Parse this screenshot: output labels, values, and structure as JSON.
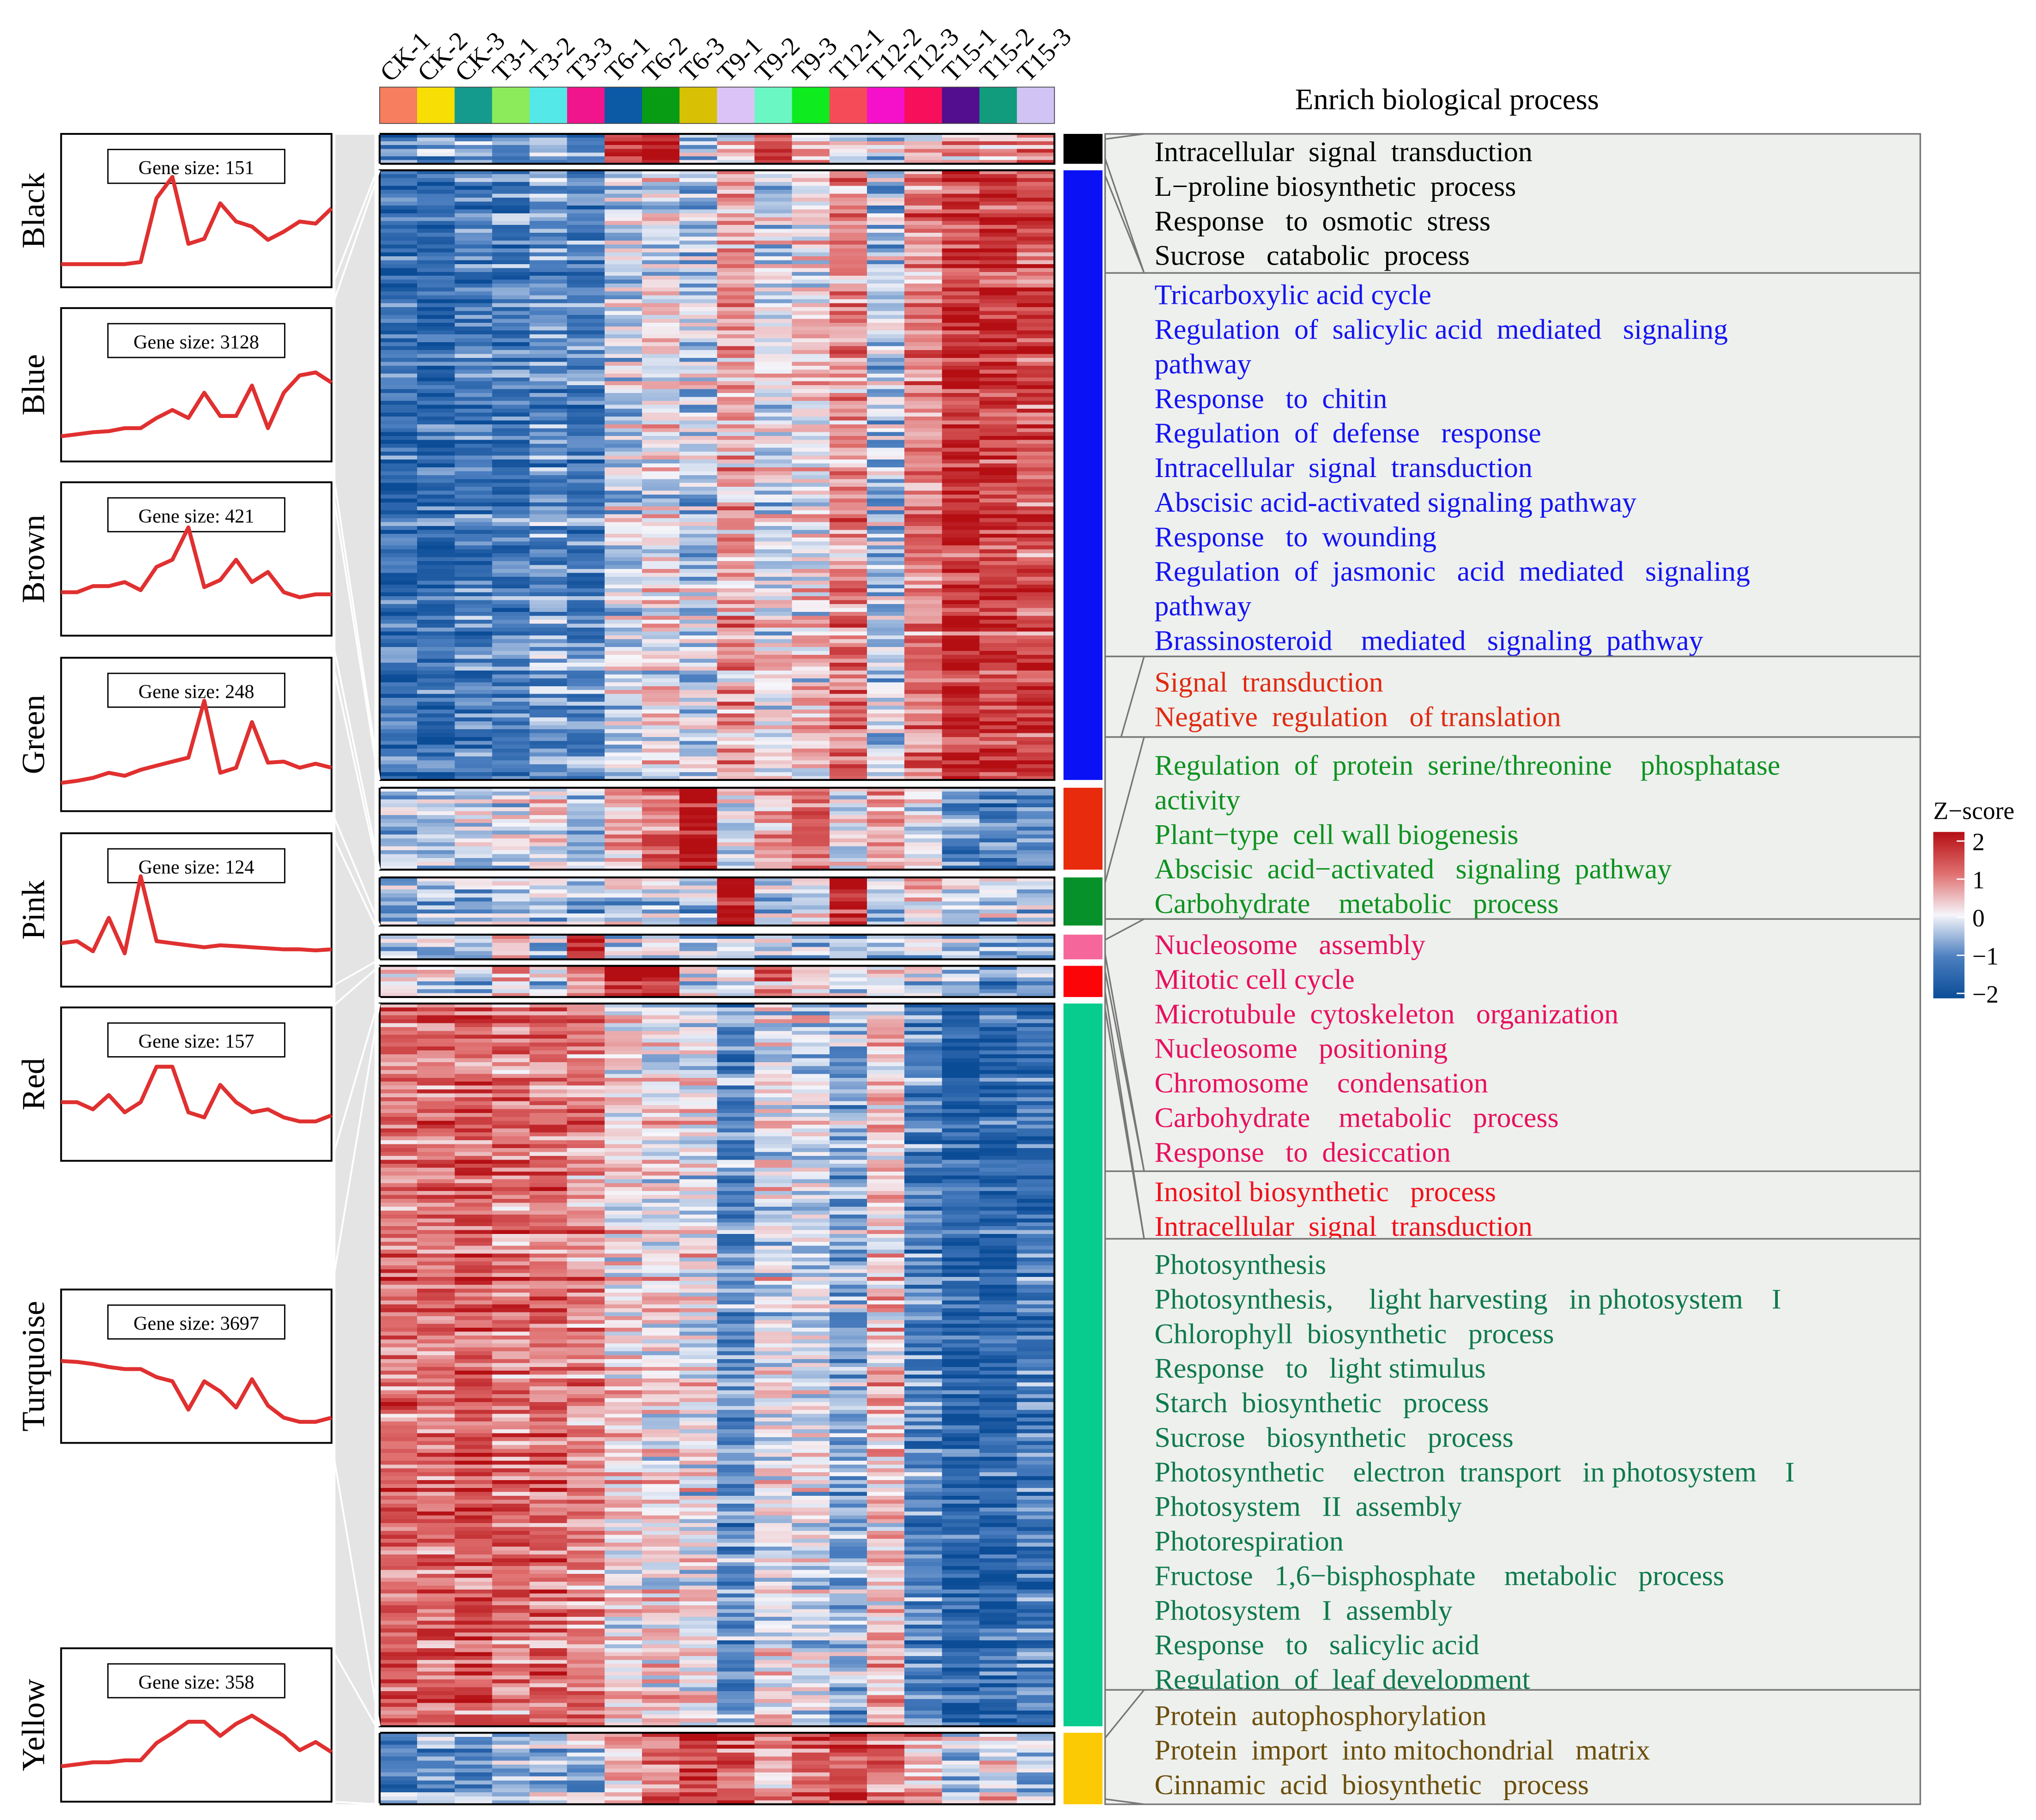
{
  "chart_data": {
    "type": "heatmap",
    "title": "Enrich biological process",
    "samples": [
      "CK-1",
      "CK-2",
      "CK-3",
      "T3-1",
      "T3-2",
      "T3-3",
      "T6-1",
      "T6-2",
      "T6-3",
      "T9-1",
      "T9-2",
      "T9-3",
      "T12-1",
      "T12-2",
      "T12-3",
      "T15-1",
      "T15-2",
      "T15-3"
    ],
    "sample_colors": [
      "#F77E5E",
      "#F7DE05",
      "#159A8E",
      "#8CEB5A",
      "#54E8E8",
      "#F0158C",
      "#0C5AA6",
      "#079C13",
      "#D8C105",
      "#DCC3F7",
      "#6BF7C4",
      "#0EEB1E",
      "#F54B59",
      "#F511C9",
      "#F70F5C",
      "#520E8E",
      "#119C7E",
      "#D2C3F5"
    ],
    "colorbar": {
      "title": "Z−score",
      "ticks": [
        "2",
        "1",
        "0",
        "−1",
        "−2"
      ],
      "range": [
        -2,
        2
      ],
      "colors": [
        "#0B4C97",
        "#4C7FC0",
        "#F5F5FA",
        "#E06F6F",
        "#B40E13"
      ]
    },
    "modules": [
      {
        "name": "Black",
        "color": "#000000",
        "text_color": "#000000",
        "gene_size_label": "Gene size: 151",
        "trend": [
          0.1,
          0.1,
          0.1,
          0.1,
          0.1,
          0.12,
          0.75,
          0.96,
          0.3,
          0.35,
          0.7,
          0.52,
          0.47,
          0.34,
          0.42,
          0.52,
          0.5,
          0.65
        ],
        "heatmap_rows": [
          [
            -0.9,
            -0.8,
            -0.9,
            -0.8,
            -0.7,
            -0.9,
            1.6,
            2.0,
            -0.3,
            0.2,
            1.6,
            0.6,
            0.1,
            -0.2,
            0.2,
            0.7,
            0.6,
            0.9
          ]
        ],
        "terms": [
          "Intracellular  signal  transduction",
          "L−proline biosynthetic  process",
          "Response   to  osmotic  stress",
          "Sucrose   catabolic  process"
        ]
      },
      {
        "name": "Blue",
        "color": "#0A12F5",
        "text_color": "#1414F2",
        "gene_size_label": "Gene size: 3128",
        "trend": [
          0.12,
          0.14,
          0.16,
          0.17,
          0.2,
          0.2,
          0.3,
          0.38,
          0.3,
          0.55,
          0.32,
          0.32,
          0.62,
          0.2,
          0.55,
          0.72,
          0.75,
          0.65
        ],
        "heatmap_rows": [
          [
            -1.4,
            -1.5,
            -1.2,
            -1.2,
            -0.9,
            -1.1,
            -0.3,
            0.0,
            -0.3,
            0.6,
            -0.1,
            0.1,
            0.8,
            -0.4,
            0.9,
            1.6,
            1.5,
            1.3
          ]
        ],
        "terms": [
          "Tricarboxylic acid cycle",
          "Regulation  of  salicylic acid  mediated   signaling",
          "pathway",
          "Response   to  chitin",
          "Regulation  of  defense   response",
          "Intracellular  signal  transduction",
          "Abscisic acid-activated signaling pathway",
          "Response   to  wounding",
          "Regulation  of  jasmonic   acid  mediated   signaling",
          "pathway",
          "Brassinosteroid    mediated   signaling  pathway"
        ]
      },
      {
        "name": "Brown",
        "color": "#E82A0D",
        "text_color": "#E02A10",
        "gene_size_label": "Gene size: 421",
        "trend": [
          0.3,
          0.3,
          0.36,
          0.36,
          0.4,
          0.32,
          0.55,
          0.62,
          0.94,
          0.35,
          0.42,
          0.62,
          0.4,
          0.5,
          0.3,
          0.25,
          0.28,
          0.28
        ],
        "heatmap_rows": [
          [
            -0.4,
            -0.5,
            -0.3,
            -0.2,
            0.1,
            -0.6,
            0.3,
            0.9,
            1.9,
            -0.2,
            0.4,
            1.1,
            0.0,
            0.6,
            -0.2,
            -1.0,
            -1.1,
            -1.0
          ]
        ],
        "terms": [
          "Signal  transduction",
          "Negative  regulation   of translation"
        ]
      },
      {
        "name": "Green",
        "color": "#07912A",
        "text_color": "#0E9220",
        "gene_size_label": "Gene size: 248",
        "trend": [
          0.15,
          0.17,
          0.2,
          0.25,
          0.22,
          0.28,
          0.32,
          0.36,
          0.4,
          0.96,
          0.25,
          0.3,
          0.75,
          0.35,
          0.36,
          0.3,
          0.34,
          0.3
        ],
        "heatmap_rows": [
          [
            -0.7,
            -0.6,
            -0.7,
            -0.6,
            -0.4,
            -0.6,
            -0.4,
            -0.3,
            -0.5,
            2.0,
            -0.5,
            -0.2,
            1.8,
            -0.3,
            0.3,
            -0.4,
            0.0,
            -0.3
          ]
        ],
        "terms": [
          "Regulation  of  protein  serine/threonine    phosphatase",
          "activity",
          "Plant−type  cell wall biogenesis",
          "Abscisic  acid−activated   signaling  pathway",
          "Carbohydrate    metabolic   process"
        ]
      },
      {
        "name": "Pink",
        "color": "#F5679A",
        "text_color": "#E8105E",
        "gene_size_label": "Gene size: 124",
        "trend": [
          0.3,
          0.32,
          0.22,
          0.55,
          0.2,
          0.96,
          0.32,
          0.3,
          0.28,
          0.26,
          0.28,
          0.27,
          0.26,
          0.25,
          0.24,
          0.24,
          0.23,
          0.24
        ],
        "heatmap_rows": [
          [
            -0.3,
            -0.2,
            -0.3,
            0.8,
            -0.4,
            2.2,
            -0.2,
            0.1,
            -0.2,
            -0.4,
            -0.3,
            -0.3,
            -0.3,
            -0.4,
            -0.3,
            -0.5,
            -0.4,
            -0.5
          ]
        ],
        "terms": [
          "Nucleosome   assembly",
          "Mitotic cell cycle",
          "Microtubule  cytoskeleton   organization",
          "Nucleosome   positioning",
          "Chromosome    condensation",
          "Carbohydrate    metabolic   process",
          "Response   to  desiccation"
        ]
      },
      {
        "name": "Red",
        "color": "#FC0509",
        "text_color": "#F2101A",
        "gene_size_label": "Gene size: 157",
        "trend": [
          0.45,
          0.45,
          0.38,
          0.52,
          0.35,
          0.45,
          0.8,
          0.8,
          0.35,
          0.3,
          0.62,
          0.45,
          0.35,
          0.38,
          0.3,
          0.26,
          0.26,
          0.32
        ],
        "heatmap_rows": [
          [
            -0.2,
            -0.3,
            -0.4,
            0.4,
            -0.3,
            0.5,
            1.8,
            1.7,
            -0.3,
            -0.5,
            0.9,
            0.3,
            -0.3,
            -0.1,
            -0.5,
            -0.9,
            -0.9,
            -0.7
          ]
        ],
        "terms": [
          "Inositol biosynthetic   process",
          "Intracellular  signal  transduction"
        ]
      },
      {
        "name": "Turquoise",
        "color": "#07CC8D",
        "text_color": "#0E7A4C",
        "gene_size_label": "Gene size: 3697",
        "trend": [
          0.68,
          0.67,
          0.65,
          0.62,
          0.6,
          0.6,
          0.52,
          0.48,
          0.2,
          0.48,
          0.38,
          0.22,
          0.5,
          0.24,
          0.12,
          0.08,
          0.08,
          0.12
        ],
        "heatmap_rows": [
          [
            1.0,
            1.1,
            1.2,
            1.0,
            1.1,
            0.9,
            0.3,
            0.2,
            0.0,
            -0.9,
            0.0,
            -0.1,
            -0.6,
            0.4,
            -1.0,
            -1.5,
            -1.5,
            -1.2
          ]
        ],
        "terms": [
          "Photosynthesis",
          "Photosynthesis,     light harvesting   in photosystem    I",
          "Chlorophyll  biosynthetic   process",
          "Response   to   light stimulus",
          "Starch  biosynthetic   process",
          "Sucrose   biosynthetic   process",
          "Photosynthetic    electron  transport   in photosystem    I",
          "Photosystem   II  assembly",
          "Photorespiration",
          "Fructose   1,6−bisphosphate    metabolic   process",
          "Photosystem   I  assembly",
          "Response   to   salicylic acid",
          "Regulation  of  leaf development"
        ]
      },
      {
        "name": "Yellow",
        "color": "#FCC905",
        "text_color": "#6B4E0A",
        "gene_size_label": "Gene size: 358",
        "trend": [
          0.22,
          0.24,
          0.26,
          0.26,
          0.28,
          0.28,
          0.45,
          0.55,
          0.66,
          0.66,
          0.52,
          0.64,
          0.72,
          0.62,
          0.52,
          0.38,
          0.46,
          0.36
        ],
        "heatmap_rows": [
          [
            -1.0,
            -0.9,
            -0.8,
            -0.7,
            -0.5,
            -0.4,
            0.4,
            0.9,
            1.4,
            1.2,
            0.6,
            1.0,
            1.4,
            1.0,
            0.7,
            -0.5,
            0.2,
            -0.4
          ]
        ],
        "terms": [
          "Protein  autophosphorylation",
          "Protein  import  into mitochondrial   matrix",
          "Cinnamic  acid  biosynthetic   process"
        ]
      }
    ]
  }
}
